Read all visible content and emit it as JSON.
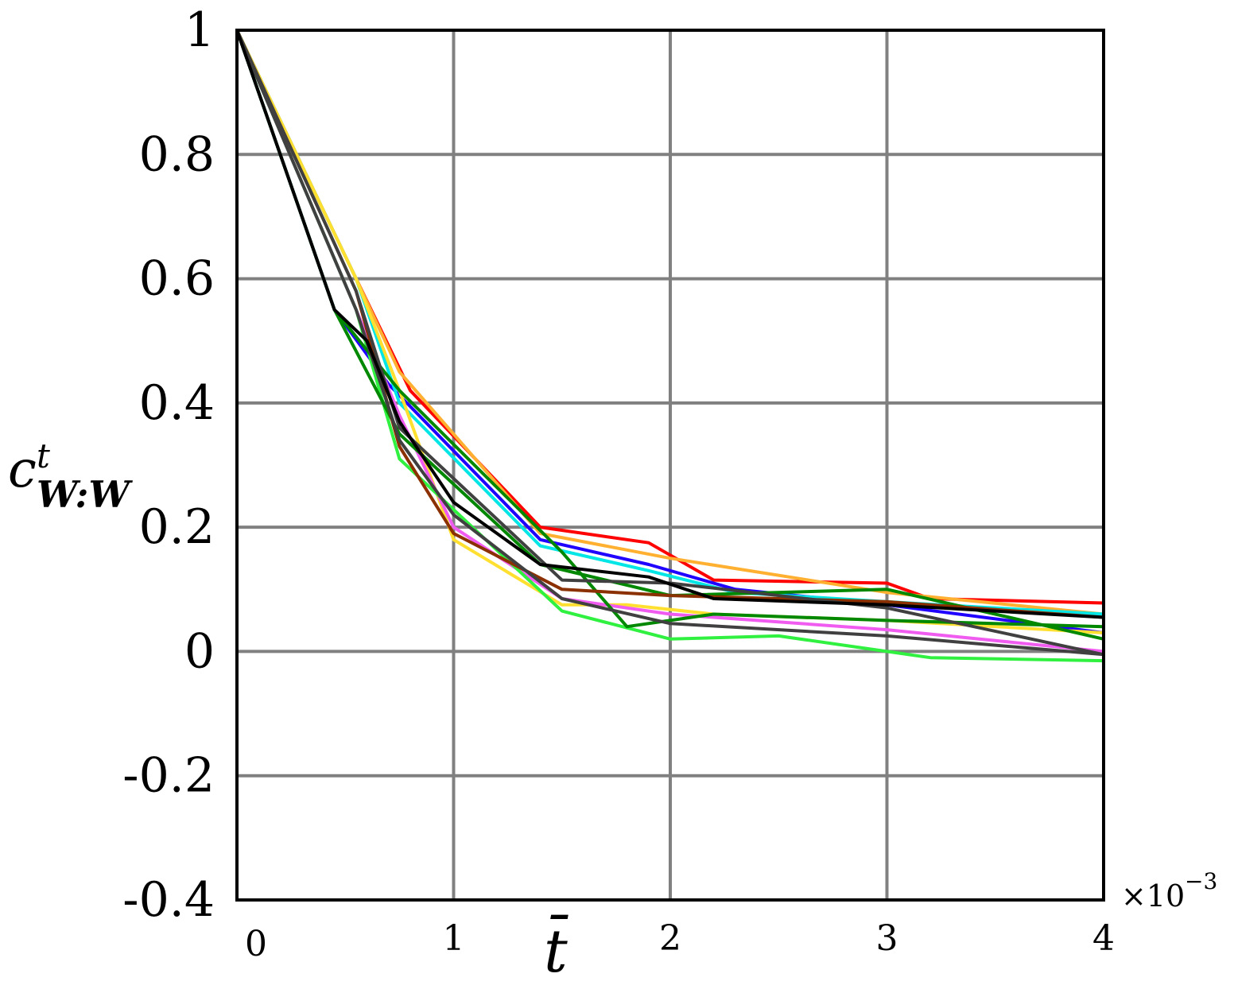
{
  "chart_data": {
    "type": "line",
    "xlabel": "t̄",
    "ylabel": "c",
    "ylabel_sup": "t",
    "ylabel_sub": "W:W",
    "x_exponent": "×10",
    "x_exponent_power": "−3",
    "xlim": [
      0,
      4
    ],
    "ylim": [
      -0.4,
      1
    ],
    "xticks": [
      "0",
      "1",
      "2",
      "3",
      "4"
    ],
    "yticks": [
      "1",
      "0.8",
      "0.6",
      "0.4",
      "0.2",
      "0",
      "-0.2",
      "-0.4"
    ],
    "ytick_values": [
      1,
      0.8,
      0.6,
      0.4,
      0.2,
      0,
      -0.2,
      -0.4
    ],
    "grid": true,
    "series": [
      {
        "color": "#ff0000",
        "x": [
          0,
          0.55,
          0.8,
          1.4,
          1.9,
          2.2,
          3.0,
          3.2,
          4.0
        ],
        "y": [
          1,
          0.6,
          0.42,
          0.2,
          0.175,
          0.115,
          0.11,
          0.085,
          0.078
        ]
      },
      {
        "color": "#ffb030",
        "x": [
          0,
          0.55,
          0.75,
          1.4,
          2.0,
          3.0,
          4.0
        ],
        "y": [
          1,
          0.6,
          0.45,
          0.19,
          0.15,
          0.095,
          0.06
        ]
      },
      {
        "color": "#2000ff",
        "x": [
          0,
          0.45,
          0.7,
          1.4,
          1.9,
          2.3,
          3.0,
          4.0
        ],
        "y": [
          1,
          0.55,
          0.43,
          0.18,
          0.14,
          0.1,
          0.075,
          0.03
        ]
      },
      {
        "color": "#00e5e5",
        "x": [
          0,
          0.55,
          0.75,
          1.4,
          1.9,
          2.3,
          3.0,
          4.0
        ],
        "y": [
          1,
          0.6,
          0.4,
          0.17,
          0.13,
          0.095,
          0.08,
          0.06
        ]
      },
      {
        "color": "#ffe030",
        "x": [
          0,
          0.55,
          0.75,
          1.0,
          1.5,
          1.8,
          2.2,
          3.0,
          4.0
        ],
        "y": [
          1,
          0.6,
          0.42,
          0.18,
          0.075,
          0.075,
          0.06,
          0.05,
          0.03
        ]
      },
      {
        "color": "#f05cf0",
        "x": [
          0,
          0.55,
          0.75,
          1.0,
          1.5,
          2.0,
          3.0,
          4.0
        ],
        "y": [
          1,
          0.55,
          0.38,
          0.2,
          0.085,
          0.06,
          0.035,
          0.0
        ]
      },
      {
        "color": "#30f040",
        "x": [
          0,
          0.55,
          0.75,
          1.5,
          2.0,
          2.5,
          3.0,
          3.2,
          4.0
        ],
        "y": [
          1,
          0.55,
          0.31,
          0.065,
          0.02,
          0.025,
          0.0,
          -0.01,
          -0.015
        ]
      },
      {
        "color": "#008800",
        "x": [
          0,
          0.45,
          0.75,
          1.5,
          1.8,
          2.2,
          3.0,
          4.0
        ],
        "y": [
          1,
          0.55,
          0.42,
          0.16,
          0.04,
          0.06,
          0.05,
          0.04
        ]
      },
      {
        "color": "#008800",
        "x": [
          0,
          0.45,
          0.75,
          1.4,
          2.0,
          3.0,
          4.0
        ],
        "y": [
          1,
          0.55,
          0.35,
          0.14,
          0.09,
          0.1,
          0.02
        ]
      },
      {
        "color": "#8b3000",
        "x": [
          0,
          0.55,
          0.75,
          1.0,
          1.5,
          2.0,
          2.5,
          3.0,
          4.0
        ],
        "y": [
          1,
          0.58,
          0.33,
          0.19,
          0.1,
          0.09,
          0.085,
          0.08,
          0.055
        ]
      },
      {
        "color": "#404040",
        "x": [
          0,
          0.55,
          0.75,
          1.0,
          1.5,
          2.0,
          3.0,
          4.0
        ],
        "y": [
          1,
          0.55,
          0.34,
          0.22,
          0.085,
          0.045,
          0.025,
          -0.005
        ]
      },
      {
        "color": "#404040",
        "x": [
          0,
          0.55,
          0.75,
          1.5,
          2.0,
          3.0,
          4.0
        ],
        "y": [
          1,
          0.58,
          0.36,
          0.115,
          0.11,
          0.07,
          -0.005
        ]
      },
      {
        "color": "#000000",
        "x": [
          0,
          0.45,
          0.6,
          0.75,
          1.0,
          1.4,
          1.9,
          2.2,
          3.0,
          4.0
        ],
        "y": [
          1,
          0.55,
          0.5,
          0.37,
          0.24,
          0.14,
          0.12,
          0.085,
          0.075,
          0.055
        ]
      }
    ]
  }
}
